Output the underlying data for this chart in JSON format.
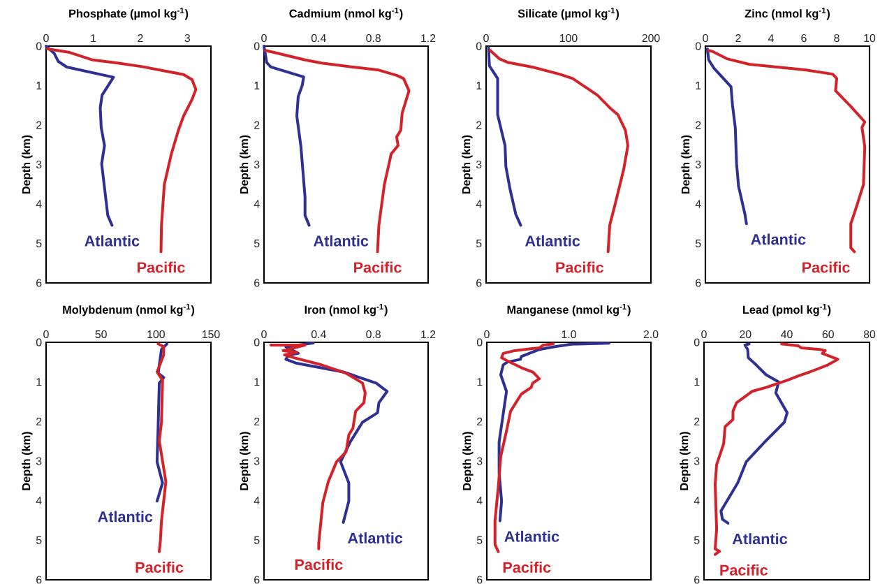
{
  "chart_data": [
    {
      "type": "line",
      "title": "Phosphate (µmol kg$^{-1}$)",
      "ylabel": "Depth (km)",
      "xlim": [
        0,
        3.5
      ],
      "xticks": [
        0,
        1,
        2,
        3
      ],
      "ylim": [
        6,
        0
      ],
      "yticks": [
        0,
        1,
        2,
        3,
        4,
        5,
        6
      ],
      "series": [
        {
          "name": "Atlantic",
          "color": "#2e3192",
          "x": [
            0,
            0.17,
            0.26,
            0.44,
            1.43,
            1.19,
            1.15,
            1.17,
            1.24,
            1.18,
            1.31,
            1.4
          ],
          "values": [
            0,
            0.18,
            0.39,
            0.53,
            0.79,
            1.24,
            1.56,
            2.06,
            2.52,
            2.98,
            4.29,
            4.54
          ]
        },
        {
          "name": "Pacific",
          "color": "#d2232a",
          "x": [
            0.03,
            0.5,
            0.99,
            1.52,
            2.04,
            2.57,
            2.92,
            3.1,
            3.18,
            3.1,
            2.92,
            2.81,
            2.66,
            2.51,
            2.45,
            2.44
          ],
          "values": [
            0.07,
            0.16,
            0.35,
            0.43,
            0.52,
            0.64,
            0.72,
            0.85,
            1.1,
            1.35,
            1.77,
            2.13,
            2.73,
            3.51,
            4.54,
            5.21
          ]
        }
      ]
    },
    {
      "type": "line",
      "title": "Cadmium (nmol kg$^{-1}$)",
      "ylabel": "Depth (km)",
      "xlim": [
        0,
        1.2
      ],
      "xticks": [
        0,
        0.4,
        0.8,
        1.2
      ],
      "ylim": [
        6,
        0
      ],
      "yticks": [
        0,
        1,
        2,
        3,
        4,
        5,
        6
      ],
      "series": [
        {
          "name": "Atlantic",
          "color": "#2e3192",
          "x": [
            0,
            0.02,
            0.05,
            0.29,
            0.28,
            0.25,
            0.24,
            0.27,
            0.3,
            0.3,
            0.33
          ],
          "values": [
            0,
            0.42,
            0.53,
            0.78,
            0.99,
            1.28,
            1.77,
            2.55,
            3.83,
            4.29,
            4.54
          ]
        },
        {
          "name": "Pacific",
          "color": "#d2232a",
          "x": [
            0.01,
            0.1,
            0.3,
            0.42,
            0.65,
            0.83,
            0.97,
            1.02,
            1.06,
            1.01,
            1.0,
            0.97,
            0.98,
            0.93,
            0.88,
            0.84,
            0.83
          ],
          "values": [
            0.11,
            0.18,
            0.35,
            0.43,
            0.53,
            0.6,
            0.74,
            0.82,
            1.13,
            1.7,
            2.13,
            2.3,
            2.52,
            2.73,
            3.51,
            4.54,
            5.21
          ]
        }
      ]
    },
    {
      "type": "line",
      "title": "Silicate (µmol kg$^{-1}$)",
      "ylabel": "Depth (km)",
      "xlim": [
        0,
        200
      ],
      "xticks": [
        0,
        100,
        200
      ],
      "ylim": [
        6,
        0
      ],
      "yticks": [
        0,
        1,
        2,
        3,
        4,
        5,
        6
      ],
      "series": [
        {
          "name": "Atlantic",
          "color": "#2e3192",
          "x": [
            3,
            4,
            14,
            14,
            23,
            24,
            29,
            36,
            42
          ],
          "values": [
            0.04,
            0.5,
            0.82,
            1.74,
            2.52,
            3.05,
            3.62,
            4.26,
            4.54
          ]
        },
        {
          "name": "Pacific",
          "color": "#d2232a",
          "x": [
            5,
            16,
            26,
            56,
            89,
            105,
            135,
            150,
            160,
            169,
            172,
            167,
            157,
            150,
            148
          ],
          "values": [
            0.11,
            0.32,
            0.41,
            0.53,
            0.71,
            0.82,
            1.24,
            1.56,
            1.74,
            2.13,
            2.52,
            3.12,
            3.97,
            4.54,
            5.21
          ]
        }
      ]
    },
    {
      "type": "line",
      "title": "Zinc (nmol kg$^{-1}$)",
      "ylabel": "Depth (km)",
      "xlim": [
        0,
        10
      ],
      "xticks": [
        0,
        2,
        4,
        6,
        8,
        10
      ],
      "ylim": [
        6,
        0
      ],
      "yticks": [
        0,
        1,
        2,
        3,
        4,
        5,
        6
      ],
      "series": [
        {
          "name": "Atlantic",
          "color": "#2e3192",
          "x": [
            0.12,
            0.2,
            0.54,
            1.56,
            1.65,
            1.82,
            1.9,
            2.02,
            2.41,
            2.5
          ],
          "values": [
            0.07,
            0.35,
            0.57,
            1.03,
            1.49,
            2.06,
            2.98,
            3.55,
            4.26,
            4.5
          ]
        },
        {
          "name": "Pacific",
          "color": "#d2232a",
          "x": [
            0.2,
            0.46,
            1.31,
            2.67,
            6.06,
            7.76,
            8.0,
            7.93,
            8.86,
            9.71,
            9.54,
            9.71,
            9.63,
            9.12,
            8.86,
            8.86,
            9.08
          ],
          "values": [
            0.11,
            0.14,
            0.32,
            0.46,
            0.6,
            0.71,
            0.82,
            1.13,
            1.53,
            1.92,
            2.06,
            2.55,
            3.51,
            4.18,
            4.5,
            5.11,
            5.21
          ]
        }
      ]
    },
    {
      "type": "line",
      "title": "Molybdenum (nmol kg$^{-1}$)",
      "ylabel": "Depth (km)",
      "xlim": [
        0,
        150
      ],
      "xticks": [
        0,
        50,
        100,
        150
      ],
      "ylim": [
        6,
        0
      ],
      "yticks": [
        0,
        1,
        2,
        3,
        4,
        5,
        6
      ],
      "series": [
        {
          "name": "Atlantic",
          "color": "#2e3192",
          "x": [
            110,
            105,
            102,
            107,
            103,
            102,
            101,
            106,
            101
          ],
          "values": [
            0.04,
            0.18,
            0.78,
            0.89,
            1.03,
            2.1,
            3.02,
            3.55,
            4.01
          ]
        },
        {
          "name": "Pacific",
          "color": "#d2232a",
          "x": [
            102,
            107,
            107,
            101,
            106,
            105,
            103,
            109,
            105,
            104,
            103
          ],
          "values": [
            0.04,
            0.11,
            0.32,
            0.75,
            0.96,
            2.02,
            2.49,
            3.52,
            4.51,
            5.01,
            5.29
          ]
        }
      ]
    },
    {
      "type": "line",
      "title": "Iron (nmol kg$^{-1}$)",
      "ylabel": "Depth (km)",
      "xlim": [
        0,
        1.2
      ],
      "xticks": [
        0,
        0.4,
        0.8,
        1.2
      ],
      "ylim": [
        6,
        0
      ],
      "yticks": [
        0,
        1,
        2,
        3,
        4,
        5,
        6
      ],
      "series": [
        {
          "name": "Atlantic",
          "color": "#2e3192",
          "x": [
            0.36,
            0.16,
            0.25,
            0.18,
            0.16,
            0.24,
            0.58,
            0.82,
            0.9,
            0.84,
            0.83,
            0.72,
            0.63,
            0.56,
            0.62,
            0.62,
            0.58
          ],
          "values": [
            0.02,
            0.11,
            0.28,
            0.32,
            0.43,
            0.53,
            0.75,
            1.03,
            1.24,
            1.53,
            1.78,
            2.02,
            2.52,
            3.02,
            3.55,
            4.01,
            4.55
          ]
        },
        {
          "name": "Pacific",
          "color": "#d2232a",
          "x": [
            0.05,
            0.3,
            0.14,
            0.24,
            0.15,
            0.22,
            0.42,
            0.6,
            0.72,
            0.74,
            0.73,
            0.67,
            0.65,
            0.62,
            0.6,
            0.53,
            0.47,
            0.43,
            0.4,
            0.4
          ],
          "values": [
            0.07,
            0.07,
            0.21,
            0.25,
            0.32,
            0.39,
            0.57,
            0.78,
            1.03,
            1.28,
            1.53,
            1.74,
            2.17,
            2.34,
            2.77,
            3.02,
            3.52,
            4.05,
            5.08,
            5.22
          ]
        }
      ]
    },
    {
      "type": "line",
      "title": "Manganese (nmol kg$^{-1}$)",
      "ylabel": "Depth (km)",
      "xlim": [
        0,
        2
      ],
      "xticks": [
        0,
        {
          "value": 1,
          "label": "1.0"
        },
        {
          "value": 2,
          "label": "2.0"
        }
      ],
      "ylim": [
        6,
        0
      ],
      "yticks": [
        0,
        1,
        2,
        3,
        4,
        5,
        6
      ],
      "series": [
        {
          "name": "Atlantic",
          "color": "#2e3192",
          "x": [
            1.49,
            1.03,
            0.83,
            0.64,
            0.42,
            0.41,
            0.25,
            0.2,
            0.17,
            0.24,
            0.2,
            0.15,
            0.15,
            0.18,
            0.16
          ],
          "values": [
            0.02,
            0.05,
            0.11,
            0.18,
            0.36,
            0.43,
            0.5,
            0.57,
            0.82,
            1.24,
            1.81,
            2.52,
            3.3,
            4.01,
            4.51
          ]
        },
        {
          "name": "Pacific",
          "color": "#d2232a",
          "x": [
            0.81,
            0.69,
            0.64,
            0.34,
            0.2,
            0.18,
            0.24,
            0.42,
            0.56,
            0.64,
            0.56,
            0.54,
            0.42,
            0.29,
            0.24,
            0.17,
            0.14,
            0.1,
            0.1,
            0.14
          ],
          "values": [
            0.04,
            0.07,
            0.14,
            0.21,
            0.28,
            0.39,
            0.46,
            0.64,
            0.75,
            0.92,
            1.03,
            1.14,
            1.31,
            1.74,
            2.24,
            2.88,
            3.66,
            4.51,
            5.11,
            5.29
          ]
        }
      ]
    },
    {
      "type": "line",
      "title": "Lead (pmol kg$^{-1}$)",
      "ylabel": "Depth (km)",
      "xlim": [
        0,
        80
      ],
      "xticks": [
        0,
        20,
        40,
        60,
        80
      ],
      "ylim": [
        6,
        0
      ],
      "yticks": [
        0,
        1,
        2,
        3,
        4,
        5,
        6
      ],
      "series": [
        {
          "name": "Atlantic",
          "color": "#2e3192",
          "x": [
            21.8,
            19.8,
            21.1,
            21.4,
            25.2,
            30,
            36.1,
            34.7,
            40.2,
            38.8,
            29.3,
            20.4,
            16.3,
            8.2,
            8.9,
            11.6
          ],
          "values": [
            0.04,
            0.07,
            0.18,
            0.39,
            0.57,
            0.82,
            1.0,
            1.28,
            1.78,
            2.02,
            2.52,
            3.02,
            3.55,
            4.26,
            4.47,
            4.57
          ]
        },
        {
          "name": "Pacific",
          "color": "#d2232a",
          "x": [
            37.5,
            45.6,
            47,
            55.9,
            58.6,
            57.2,
            64.7,
            59.9,
            51.1,
            45.6,
            40.2,
            30,
            23.2,
            15.7,
            14,
            14,
            10.2,
            9.5,
            6.1,
            5.4,
            6.1,
            5.4,
            7.5,
            5.4
          ],
          "values": [
            0.04,
            0.09,
            0.14,
            0.18,
            0.21,
            0.28,
            0.43,
            0.57,
            0.75,
            0.85,
            0.96,
            1.14,
            1.24,
            1.53,
            1.74,
            1.95,
            2.13,
            2.56,
            3.09,
            3.59,
            4.72,
            5.22,
            5.28,
            5.36
          ]
        }
      ]
    }
  ]
}
